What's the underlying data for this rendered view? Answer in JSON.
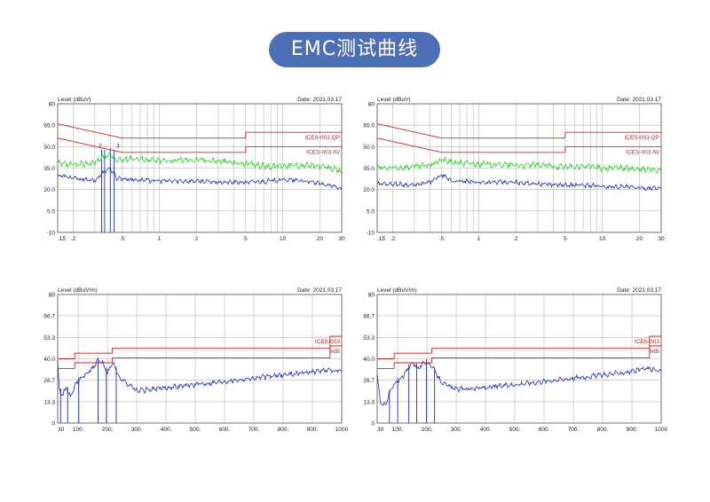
{
  "page": {
    "title": "EMC测试曲线"
  },
  "colors": {
    "limit": "#e0201b",
    "green_trace": "#22dd22",
    "blue_trace": "#1b2fcc",
    "grid": "#b8b8b8",
    "pill": "#4d6fb6"
  },
  "chart_data": [
    {
      "type": "line",
      "ylabel": "Level (dBuV)",
      "date": "Date: 2021.03.17",
      "x_scale": "log",
      "xlim": [
        0.15,
        30
      ],
      "ylim": [
        -10,
        80
      ],
      "yticks": [
        -10,
        5.0,
        20.0,
        35.0,
        50.0,
        65.0,
        80
      ],
      "ytick_labels": [
        "-10",
        "5.0",
        "20.0",
        "35.0",
        "50.0",
        "65.0",
        "80"
      ],
      "xtick_values": [
        0.15,
        0.2,
        0.5,
        1,
        2,
        5,
        10,
        20,
        30
      ],
      "xtick_labels": [
        ".15",
        ".2",
        ".5",
        "1",
        "2",
        "5",
        "10",
        "20",
        "30"
      ],
      "limits": [
        {
          "name": "ICES-003 QP",
          "points": [
            [
              0.15,
              66
            ],
            [
              0.5,
              56
            ],
            [
              5,
              56
            ],
            [
              5,
              60
            ],
            [
              30,
              60
            ]
          ]
        },
        {
          "name": "ICES-003 AV",
          "points": [
            [
              0.15,
              56
            ],
            [
              0.5,
              46
            ],
            [
              5,
              46
            ],
            [
              5,
              50
            ],
            [
              30,
              50
            ]
          ]
        }
      ],
      "markers": [
        0.34,
        0.36,
        0.4,
        0.43
      ],
      "marker_labels": [
        "2",
        "3"
      ],
      "series": [
        {
          "values": [
            [
              0.15,
              38
            ],
            [
              0.2,
              37
            ],
            [
              0.3,
              39
            ],
            [
              0.36,
              43
            ],
            [
              0.4,
              45
            ],
            [
              0.45,
              40
            ],
            [
              0.6,
              42
            ],
            [
              1,
              40
            ],
            [
              2,
              41
            ],
            [
              3,
              40
            ],
            [
              5,
              38
            ],
            [
              8,
              36
            ],
            [
              10,
              37
            ],
            [
              15,
              37
            ],
            [
              20,
              36
            ],
            [
              25,
              35
            ],
            [
              30,
              32
            ]
          ]
        },
        {
          "values": [
            [
              0.15,
              30
            ],
            [
              0.2,
              28
            ],
            [
              0.3,
              26
            ],
            [
              0.36,
              33
            ],
            [
              0.4,
              35
            ],
            [
              0.45,
              28
            ],
            [
              0.6,
              27
            ],
            [
              1,
              26
            ],
            [
              2,
              26
            ],
            [
              3,
              25
            ],
            [
              5,
              25
            ],
            [
              8,
              26
            ],
            [
              10,
              27
            ],
            [
              15,
              26
            ],
            [
              20,
              24
            ],
            [
              30,
              21
            ]
          ]
        }
      ]
    },
    {
      "type": "line",
      "ylabel": "Level (dBuV)",
      "date": "Date: 2021.03.17",
      "x_scale": "log",
      "xlim": [
        0.15,
        30
      ],
      "ylim": [
        -10,
        80
      ],
      "yticks": [
        -10,
        5.0,
        20.0,
        35.0,
        50.0,
        65.0,
        80
      ],
      "ytick_labels": [
        "-10",
        "5.0",
        "20.0",
        "35.0",
        "50.0",
        "65.0",
        "80"
      ],
      "xtick_values": [
        0.15,
        0.2,
        0.5,
        1,
        2,
        5,
        10,
        20,
        30
      ],
      "xtick_labels": [
        ".15",
        ".2",
        ".5",
        "1",
        "2",
        "5",
        "10",
        "20",
        "30"
      ],
      "limits": [
        {
          "name": "ICES-003 QP",
          "points": [
            [
              0.15,
              66
            ],
            [
              0.5,
              56
            ],
            [
              5,
              56
            ],
            [
              5,
              60
            ],
            [
              30,
              60
            ]
          ]
        },
        {
          "name": "ICES-003 AV",
          "points": [
            [
              0.15,
              56
            ],
            [
              0.5,
              46
            ],
            [
              5,
              46
            ],
            [
              5,
              50
            ],
            [
              30,
              50
            ]
          ]
        }
      ],
      "markers": [],
      "marker_labels": [],
      "series": [
        {
          "values": [
            [
              0.15,
              35
            ],
            [
              0.2,
              35
            ],
            [
              0.3,
              36
            ],
            [
              0.4,
              37
            ],
            [
              0.5,
              41
            ],
            [
              0.6,
              39
            ],
            [
              1,
              38
            ],
            [
              2,
              37
            ],
            [
              3,
              37
            ],
            [
              5,
              36
            ],
            [
              8,
              36
            ],
            [
              10,
              35
            ],
            [
              15,
              35
            ],
            [
              20,
              34
            ],
            [
              30,
              34
            ]
          ]
        },
        {
          "values": [
            [
              0.15,
              24
            ],
            [
              0.2,
              24
            ],
            [
              0.3,
              23
            ],
            [
              0.4,
              25
            ],
            [
              0.5,
              30
            ],
            [
              0.6,
              26
            ],
            [
              1,
              25
            ],
            [
              2,
              25
            ],
            [
              3,
              24
            ],
            [
              5,
              23
            ],
            [
              8,
              23
            ],
            [
              10,
              22
            ],
            [
              15,
              22
            ],
            [
              20,
              21
            ],
            [
              30,
              21
            ]
          ]
        }
      ]
    },
    {
      "type": "line",
      "ylabel": "Level (dBuV/m)",
      "date": "Date: 2021.03.17",
      "x_scale": "linear",
      "xlim": [
        30,
        1000
      ],
      "ylim": [
        0,
        80
      ],
      "yticks": [
        0,
        13.3,
        26.7,
        40.0,
        53.3,
        66.7,
        80
      ],
      "ytick_labels": [
        "0",
        "13.3",
        "26.7",
        "40.0",
        "53.3",
        "66.7",
        "80"
      ],
      "xtick_values": [
        30,
        100,
        200,
        300,
        400,
        500,
        600,
        700,
        800,
        900,
        1000
      ],
      "xtick_labels": [
        "30",
        "100.",
        "200.",
        "300.",
        "400.",
        "500.",
        "600.",
        "700.",
        "800.",
        "900.",
        "1000"
      ],
      "limits": [
        {
          "name": "ICES-003",
          "points": [
            [
              30,
              40
            ],
            [
              88,
              40
            ],
            [
              88,
              43.5
            ],
            [
              216,
              43.5
            ],
            [
              216,
              46.5
            ],
            [
              960,
              46.5
            ],
            [
              960,
              54
            ],
            [
              1000,
              54
            ]
          ]
        },
        {
          "name": "6dB",
          "points": [
            [
              30,
              34
            ],
            [
              88,
              34
            ],
            [
              88,
              37.5
            ],
            [
              216,
              37.5
            ],
            [
              216,
              40.5
            ],
            [
              960,
              40.5
            ],
            [
              960,
              48
            ],
            [
              1000,
              48
            ]
          ]
        }
      ],
      "markers": [
        40,
        64,
        102,
        168,
        196,
        230
      ],
      "marker_labels": [],
      "series": [
        {
          "values": [
            [
              30,
              40
            ],
            [
              35,
              22
            ],
            [
              45,
              17
            ],
            [
              60,
              22
            ],
            [
              75,
              16
            ],
            [
              90,
              24
            ],
            [
              110,
              28
            ],
            [
              130,
              31
            ],
            [
              150,
              34
            ],
            [
              165,
              39
            ],
            [
              185,
              37
            ],
            [
              200,
              31
            ],
            [
              220,
              38
            ],
            [
              240,
              28
            ],
            [
              260,
              26
            ],
            [
              300,
              20
            ],
            [
              400,
              22
            ],
            [
              500,
              24
            ],
            [
              600,
              26
            ],
            [
              700,
              28
            ],
            [
              800,
              30
            ],
            [
              900,
              32
            ],
            [
              950,
              33
            ],
            [
              1000,
              32
            ]
          ]
        }
      ]
    },
    {
      "type": "line",
      "ylabel": "Level (dBuV/m)",
      "date": "Date: 2021.03.17",
      "x_scale": "linear",
      "xlim": [
        30,
        1000
      ],
      "ylim": [
        0,
        80
      ],
      "yticks": [
        0,
        13.3,
        26.7,
        40.0,
        53.3,
        66.7,
        80
      ],
      "ytick_labels": [
        "0",
        "13.3",
        "26.7",
        "40.0",
        "53.3",
        "66.7",
        "80"
      ],
      "xtick_values": [
        30,
        100,
        200,
        300,
        400,
        500,
        600,
        700,
        800,
        900,
        1000
      ],
      "xtick_labels": [
        "30",
        "100.",
        "200.",
        "300.",
        "400.",
        "500.",
        "600.",
        "700.",
        "800.",
        "900.",
        "1000"
      ],
      "limits": [
        {
          "name": "ICES-003",
          "points": [
            [
              30,
              40
            ],
            [
              88,
              40
            ],
            [
              88,
              43.5
            ],
            [
              216,
              43.5
            ],
            [
              216,
              46.5
            ],
            [
              960,
              46.5
            ],
            [
              960,
              54
            ],
            [
              1000,
              54
            ]
          ]
        },
        {
          "name": "6dB",
          "points": [
            [
              30,
              34
            ],
            [
              88,
              34
            ],
            [
              88,
              37.5
            ],
            [
              216,
              37.5
            ],
            [
              216,
              40.5
            ],
            [
              960,
              40.5
            ],
            [
              960,
              48
            ],
            [
              1000,
              48
            ]
          ]
        }
      ],
      "markers": [
        72,
        100,
        138,
        165,
        198,
        226
      ],
      "marker_labels": [],
      "series": [
        {
          "values": [
            [
              30,
              30
            ],
            [
              40,
              14
            ],
            [
              50,
              10
            ],
            [
              60,
              13
            ],
            [
              80,
              22
            ],
            [
              110,
              28
            ],
            [
              130,
              32
            ],
            [
              150,
              38
            ],
            [
              170,
              34
            ],
            [
              195,
              38
            ],
            [
              215,
              36
            ],
            [
              240,
              28
            ],
            [
              260,
              24
            ],
            [
              300,
              21
            ],
            [
              400,
              22
            ],
            [
              500,
              24
            ],
            [
              600,
              26
            ],
            [
              700,
              28
            ],
            [
              800,
              30
            ],
            [
              900,
              32
            ],
            [
              950,
              34
            ],
            [
              1000,
              32
            ]
          ]
        }
      ]
    }
  ]
}
